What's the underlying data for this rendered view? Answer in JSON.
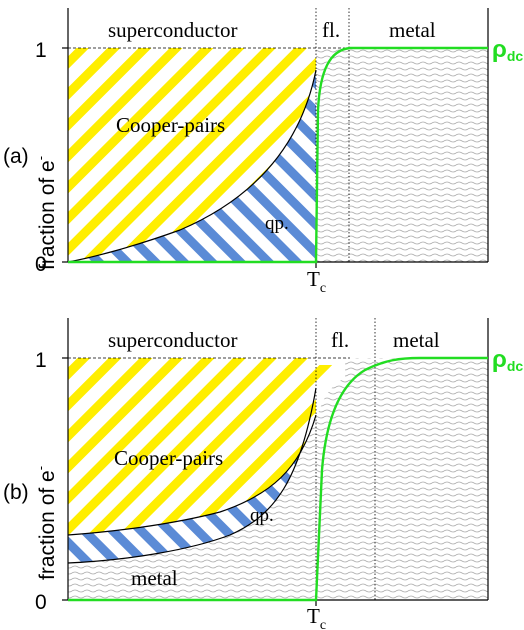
{
  "panels": [
    {
      "id": "a",
      "panel_label": "(a)",
      "y_axis_label": "fraction of e",
      "y_axis_superscript": "-",
      "tick_one": "1",
      "tick_zero": "0",
      "region_superconductor": "superconductor",
      "region_fluct": "fl.",
      "region_metal": "metal",
      "label_cooper": "Cooper-pairs",
      "label_qp": "qp.",
      "tc_main": "T",
      "tc_sub": "c",
      "rho_main": "ρ",
      "rho_sub": "dc"
    },
    {
      "id": "b",
      "panel_label": "(b)",
      "y_axis_label": "fraction of e",
      "y_axis_superscript": "-",
      "tick_one": "1",
      "tick_zero": "0",
      "region_superconductor": "superconductor",
      "region_fluct": "fl.",
      "region_metal": "metal",
      "label_cooper": "Cooper-pairs",
      "label_qp": "qp.",
      "label_metal_bottom": "metal",
      "tc_main": "T",
      "tc_sub": "c",
      "rho_main": "ρ",
      "rho_sub": "dc"
    }
  ],
  "colors": {
    "cooper_stripe": "#ffee00",
    "qp_stripe": "#5b8bd6",
    "rho_curve": "#22dd22",
    "wave": "#aaaaaa",
    "axis": "#000000"
  }
}
